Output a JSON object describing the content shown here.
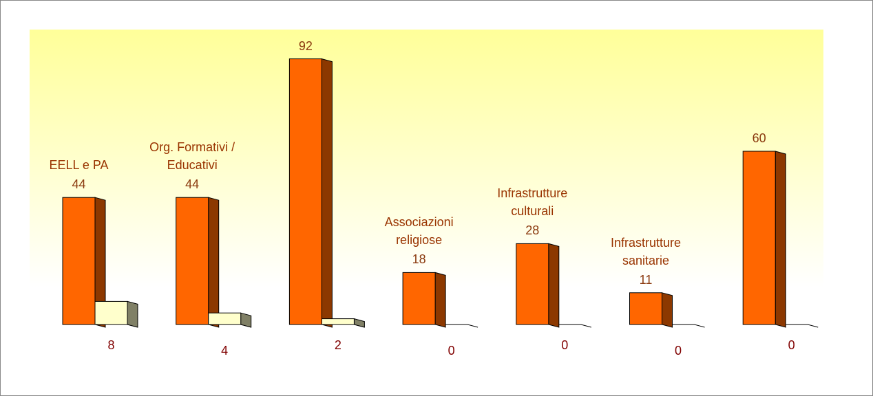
{
  "chart_data": {
    "type": "bar3d",
    "categories": [
      "EELL e PA",
      "Org. Formativi / Educativi",
      null,
      "Associazioni religiose",
      "Infrastrutture culturali",
      "Infrastrutture sanitarie",
      null
    ],
    "series": [
      {
        "color": "#ff6600",
        "values": [
          44,
          44,
          92,
          18,
          28,
          11,
          60
        ]
      },
      {
        "color": "#ffffcc",
        "values": [
          8,
          4,
          2,
          0,
          0,
          0,
          0
        ]
      }
    ]
  }
}
